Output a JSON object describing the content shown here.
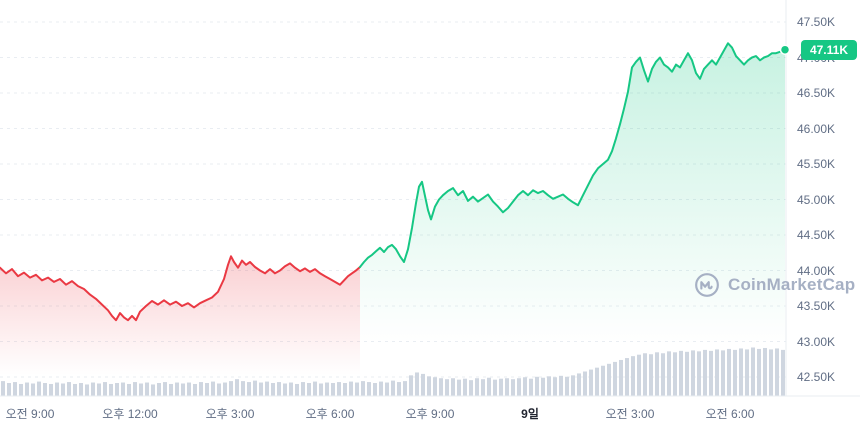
{
  "price_badge": {
    "label": "47.11K",
    "bg": "#16c784",
    "text_color": "#ffffff"
  },
  "watermark": {
    "label": "CoinMarketCap"
  },
  "chart_data": {
    "type": "line",
    "title": "",
    "ylim": [
      42.5,
      47.5
    ],
    "grid": "dashed",
    "grid_color": "#e9edf2",
    "legend": "none",
    "last_price": 47.11,
    "y_ticks": [
      "47.50K",
      "47.00K",
      "46.50K",
      "46.00K",
      "45.50K",
      "45.00K",
      "44.50K",
      "44.00K",
      "43.50K",
      "43.00K",
      "42.50K"
    ],
    "x_ticks": [
      {
        "label": "오전 9:00",
        "bold": false
      },
      {
        "label": "오후 12:00",
        "bold": false
      },
      {
        "label": "오후 3:00",
        "bold": false
      },
      {
        "label": "오후 6:00",
        "bold": false
      },
      {
        "label": "오후 9:00",
        "bold": false
      },
      {
        "label": "9일",
        "bold": true
      },
      {
        "label": "오전 3:00",
        "bold": false
      },
      {
        "label": "오전 6:00",
        "bold": false
      }
    ],
    "series": {
      "name": "price",
      "down_color": "#ea3943",
      "up_color": "#16c784",
      "split_index": 70,
      "points": [
        [
          0,
          44.04
        ],
        [
          6,
          43.96
        ],
        [
          12,
          44.02
        ],
        [
          18,
          43.92
        ],
        [
          24,
          43.97
        ],
        [
          30,
          43.9
        ],
        [
          36,
          43.94
        ],
        [
          42,
          43.86
        ],
        [
          48,
          43.9
        ],
        [
          54,
          43.84
        ],
        [
          60,
          43.88
        ],
        [
          66,
          43.8
        ],
        [
          72,
          43.85
        ],
        [
          78,
          43.78
        ],
        [
          84,
          43.74
        ],
        [
          90,
          43.66
        ],
        [
          96,
          43.6
        ],
        [
          102,
          43.52
        ],
        [
          108,
          43.44
        ],
        [
          112,
          43.36
        ],
        [
          116,
          43.3
        ],
        [
          120,
          43.4
        ],
        [
          124,
          43.34
        ],
        [
          128,
          43.3
        ],
        [
          132,
          43.36
        ],
        [
          136,
          43.3
        ],
        [
          140,
          43.42
        ],
        [
          146,
          43.5
        ],
        [
          152,
          43.57
        ],
        [
          158,
          43.52
        ],
        [
          164,
          43.58
        ],
        [
          170,
          43.52
        ],
        [
          176,
          43.56
        ],
        [
          182,
          43.5
        ],
        [
          188,
          43.54
        ],
        [
          194,
          43.48
        ],
        [
          200,
          43.54
        ],
        [
          206,
          43.58
        ],
        [
          212,
          43.62
        ],
        [
          218,
          43.7
        ],
        [
          224,
          43.88
        ],
        [
          228,
          44.08
        ],
        [
          231,
          44.2
        ],
        [
          234,
          44.12
        ],
        [
          238,
          44.04
        ],
        [
          242,
          44.14
        ],
        [
          246,
          44.08
        ],
        [
          250,
          44.12
        ],
        [
          255,
          44.05
        ],
        [
          260,
          44.0
        ],
        [
          265,
          43.96
        ],
        [
          270,
          44.02
        ],
        [
          275,
          43.96
        ],
        [
          280,
          44.0
        ],
        [
          285,
          44.06
        ],
        [
          290,
          44.1
        ],
        [
          295,
          44.04
        ],
        [
          300,
          43.99
        ],
        [
          305,
          44.03
        ],
        [
          310,
          43.98
        ],
        [
          315,
          44.02
        ],
        [
          320,
          43.96
        ],
        [
          325,
          43.92
        ],
        [
          330,
          43.88
        ],
        [
          335,
          43.84
        ],
        [
          340,
          43.8
        ],
        [
          344,
          43.86
        ],
        [
          348,
          43.92
        ],
        [
          352,
          43.96
        ],
        [
          356,
          44.0
        ],
        [
          360,
          44.05
        ],
        [
          364,
          44.12
        ],
        [
          368,
          44.18
        ],
        [
          372,
          44.22
        ],
        [
          376,
          44.27
        ],
        [
          380,
          44.32
        ],
        [
          384,
          44.26
        ],
        [
          388,
          44.33
        ],
        [
          392,
          44.36
        ],
        [
          396,
          44.3
        ],
        [
          400,
          44.2
        ],
        [
          404,
          44.12
        ],
        [
          408,
          44.3
        ],
        [
          412,
          44.6
        ],
        [
          416,
          44.95
        ],
        [
          419,
          45.18
        ],
        [
          422,
          45.25
        ],
        [
          425,
          45.05
        ],
        [
          428,
          44.85
        ],
        [
          431,
          44.72
        ],
        [
          435,
          44.9
        ],
        [
          439,
          45.0
        ],
        [
          443,
          45.06
        ],
        [
          448,
          45.12
        ],
        [
          453,
          45.16
        ],
        [
          458,
          45.06
        ],
        [
          463,
          45.12
        ],
        [
          468,
          44.98
        ],
        [
          473,
          45.04
        ],
        [
          478,
          44.97
        ],
        [
          483,
          45.02
        ],
        [
          488,
          45.07
        ],
        [
          493,
          44.97
        ],
        [
          498,
          44.9
        ],
        [
          503,
          44.82
        ],
        [
          508,
          44.88
        ],
        [
          513,
          44.97
        ],
        [
          518,
          45.06
        ],
        [
          523,
          45.12
        ],
        [
          528,
          45.06
        ],
        [
          533,
          45.13
        ],
        [
          538,
          45.09
        ],
        [
          543,
          45.12
        ],
        [
          548,
          45.06
        ],
        [
          553,
          45.01
        ],
        [
          558,
          45.04
        ],
        [
          563,
          45.07
        ],
        [
          568,
          45.01
        ],
        [
          573,
          44.96
        ],
        [
          578,
          44.92
        ],
        [
          583,
          45.06
        ],
        [
          588,
          45.2
        ],
        [
          593,
          45.34
        ],
        [
          598,
          45.44
        ],
        [
          603,
          45.5
        ],
        [
          608,
          45.56
        ],
        [
          612,
          45.68
        ],
        [
          616,
          45.86
        ],
        [
          620,
          46.06
        ],
        [
          624,
          46.28
        ],
        [
          628,
          46.52
        ],
        [
          632,
          46.86
        ],
        [
          636,
          46.94
        ],
        [
          640,
          47.0
        ],
        [
          644,
          46.82
        ],
        [
          648,
          46.66
        ],
        [
          652,
          46.84
        ],
        [
          656,
          46.94
        ],
        [
          660,
          47.0
        ],
        [
          664,
          46.9
        ],
        [
          668,
          46.86
        ],
        [
          672,
          46.8
        ],
        [
          676,
          46.9
        ],
        [
          680,
          46.86
        ],
        [
          684,
          46.96
        ],
        [
          688,
          47.06
        ],
        [
          692,
          46.96
        ],
        [
          696,
          46.78
        ],
        [
          700,
          46.7
        ],
        [
          704,
          46.84
        ],
        [
          708,
          46.9
        ],
        [
          712,
          46.96
        ],
        [
          716,
          46.9
        ],
        [
          720,
          47.0
        ],
        [
          724,
          47.1
        ],
        [
          728,
          47.2
        ],
        [
          732,
          47.14
        ],
        [
          736,
          47.02
        ],
        [
          740,
          46.96
        ],
        [
          744,
          46.9
        ],
        [
          748,
          46.96
        ],
        [
          752,
          47.0
        ],
        [
          756,
          47.02
        ],
        [
          760,
          46.96
        ],
        [
          764,
          47.0
        ],
        [
          768,
          47.02
        ],
        [
          772,
          47.06
        ],
        [
          776,
          47.06
        ],
        [
          780,
          47.08
        ],
        [
          785,
          47.11
        ]
      ]
    },
    "volume": {
      "color": "#cfd6e0",
      "heights": [
        0.3,
        0.26,
        0.28,
        0.24,
        0.27,
        0.25,
        0.29,
        0.26,
        0.24,
        0.27,
        0.25,
        0.28,
        0.24,
        0.26,
        0.23,
        0.27,
        0.25,
        0.28,
        0.24,
        0.26,
        0.27,
        0.24,
        0.28,
        0.25,
        0.27,
        0.23,
        0.26,
        0.28,
        0.24,
        0.27,
        0.25,
        0.27,
        0.24,
        0.28,
        0.26,
        0.29,
        0.25,
        0.27,
        0.3,
        0.34,
        0.3,
        0.28,
        0.31,
        0.27,
        0.29,
        0.26,
        0.28,
        0.25,
        0.27,
        0.24,
        0.28,
        0.26,
        0.29,
        0.25,
        0.27,
        0.26,
        0.28,
        0.26,
        0.29,
        0.27,
        0.3,
        0.28,
        0.26,
        0.29,
        0.27,
        0.31,
        0.28,
        0.3,
        0.42,
        0.48,
        0.45,
        0.4,
        0.38,
        0.36,
        0.34,
        0.36,
        0.33,
        0.35,
        0.32,
        0.36,
        0.34,
        0.37,
        0.33,
        0.35,
        0.36,
        0.34,
        0.36,
        0.38,
        0.35,
        0.39,
        0.37,
        0.4,
        0.38,
        0.41,
        0.39,
        0.42,
        0.46,
        0.5,
        0.54,
        0.58,
        0.62,
        0.66,
        0.7,
        0.74,
        0.78,
        0.82,
        0.85,
        0.88,
        0.86,
        0.9,
        0.88,
        0.92,
        0.9,
        0.93,
        0.91,
        0.94,
        0.92,
        0.95,
        0.93,
        0.96,
        0.94,
        0.97,
        0.95,
        0.98,
        0.96,
        1.0,
        0.97,
        0.99,
        0.96,
        0.98,
        0.95
      ]
    }
  }
}
